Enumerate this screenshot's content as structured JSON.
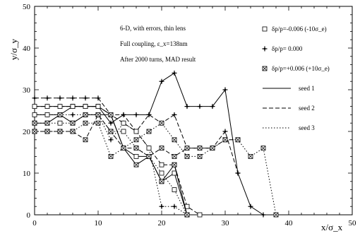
{
  "chart_data": {
    "type": "line",
    "annotations": [
      "6-D, with errors, thin lens",
      "Full coupling, ε_x=138nm",
      "After 2000 turns, MAD result"
    ],
    "xlabel": "x/σ_x",
    "ylabel": "y/σ_y",
    "xlim": [
      0,
      50
    ],
    "ylim": [
      0,
      50
    ],
    "xticks": [
      0,
      10,
      20,
      30,
      40,
      50
    ],
    "yticks": [
      0,
      10,
      20,
      30,
      40,
      50
    ],
    "grid": false,
    "legend_position": "top-right",
    "legend": {
      "markers": [
        {
          "marker": "open-square",
          "label": "δp/p=-0.006 (-10σ_e)"
        },
        {
          "marker": "plus-star",
          "label": "δp/p= 0.000"
        },
        {
          "marker": "crossed-square",
          "label": "δp/p=+0.006 (+10σ_e)"
        }
      ],
      "lines": [
        {
          "style": "solid",
          "label": "seed 1"
        },
        {
          "style": "dashed",
          "label": "seed 2"
        },
        {
          "style": "dotted",
          "label": "seed 3"
        }
      ]
    },
    "series": [
      {
        "marker": "plus-star",
        "line": "solid",
        "points": [
          [
            0,
            26
          ],
          [
            2,
            26
          ],
          [
            4,
            26
          ],
          [
            6,
            26
          ],
          [
            8,
            26
          ],
          [
            10,
            26
          ],
          [
            12,
            22
          ],
          [
            14,
            24
          ],
          [
            16,
            24
          ],
          [
            18,
            24
          ],
          [
            20,
            32
          ],
          [
            22,
            34
          ],
          [
            24,
            26
          ],
          [
            26,
            26
          ],
          [
            28,
            26
          ],
          [
            30,
            30
          ],
          [
            32,
            10
          ],
          [
            34,
            2
          ],
          [
            36,
            0
          ]
        ]
      },
      {
        "marker": "plus-star",
        "line": "dashed",
        "points": [
          [
            0,
            28
          ],
          [
            2,
            28
          ],
          [
            4,
            28
          ],
          [
            6,
            28
          ],
          [
            8,
            28
          ],
          [
            10,
            28
          ],
          [
            12,
            24
          ],
          [
            14,
            24
          ],
          [
            16,
            20
          ],
          [
            18,
            24
          ],
          [
            20,
            22
          ],
          [
            22,
            24
          ],
          [
            24,
            16
          ],
          [
            26,
            16
          ],
          [
            28,
            16
          ],
          [
            30,
            20
          ],
          [
            32,
            10
          ]
        ]
      },
      {
        "marker": "plus-star",
        "line": "dotted",
        "points": [
          [
            0,
            24
          ],
          [
            2,
            24
          ],
          [
            4,
            24
          ],
          [
            6,
            24
          ],
          [
            8,
            24
          ],
          [
            10,
            24
          ],
          [
            12,
            18
          ],
          [
            14,
            22
          ],
          [
            16,
            20
          ],
          [
            18,
            16
          ],
          [
            20,
            2
          ],
          [
            22,
            2
          ],
          [
            24,
            0
          ]
        ]
      },
      {
        "marker": "open-square",
        "line": "solid",
        "points": [
          [
            0,
            24
          ],
          [
            2,
            24
          ],
          [
            4,
            24
          ],
          [
            6,
            26
          ],
          [
            8,
            26
          ],
          [
            10,
            26
          ],
          [
            12,
            24
          ],
          [
            14,
            16
          ],
          [
            16,
            14
          ],
          [
            18,
            14
          ],
          [
            20,
            8
          ],
          [
            22,
            10
          ],
          [
            24,
            0
          ]
        ]
      },
      {
        "marker": "open-square",
        "line": "dashed",
        "points": [
          [
            0,
            26
          ],
          [
            2,
            26
          ],
          [
            4,
            26
          ],
          [
            6,
            26
          ],
          [
            8,
            26
          ],
          [
            10,
            26
          ],
          [
            12,
            24
          ],
          [
            14,
            22
          ],
          [
            16,
            20
          ],
          [
            18,
            16
          ],
          [
            20,
            12
          ],
          [
            22,
            12
          ],
          [
            24,
            2
          ],
          [
            26,
            0
          ]
        ]
      },
      {
        "marker": "open-square",
        "line": "dotted",
        "points": [
          [
            0,
            22
          ],
          [
            2,
            22
          ],
          [
            4,
            22
          ],
          [
            6,
            22
          ],
          [
            8,
            24
          ],
          [
            10,
            24
          ],
          [
            12,
            20
          ],
          [
            14,
            20
          ],
          [
            16,
            16
          ],
          [
            18,
            14
          ],
          [
            20,
            10
          ],
          [
            22,
            6
          ],
          [
            24,
            0
          ]
        ]
      },
      {
        "marker": "crossed-square",
        "line": "solid",
        "points": [
          [
            0,
            22
          ],
          [
            2,
            22
          ],
          [
            4,
            24
          ],
          [
            6,
            22
          ],
          [
            8,
            24
          ],
          [
            10,
            24
          ],
          [
            12,
            24
          ],
          [
            14,
            16
          ],
          [
            16,
            12
          ],
          [
            18,
            14
          ],
          [
            20,
            8
          ],
          [
            22,
            12
          ],
          [
            24,
            0
          ]
        ]
      },
      {
        "marker": "crossed-square",
        "line": "dashed",
        "points": [
          [
            0,
            20
          ],
          [
            2,
            20
          ],
          [
            4,
            20
          ],
          [
            6,
            20
          ],
          [
            8,
            18
          ],
          [
            10,
            24
          ],
          [
            12,
            20
          ],
          [
            14,
            16
          ],
          [
            16,
            16
          ],
          [
            18,
            14
          ],
          [
            20,
            16
          ],
          [
            22,
            14
          ],
          [
            24,
            16
          ],
          [
            26,
            16
          ],
          [
            28,
            16
          ],
          [
            30,
            18
          ],
          [
            32,
            18
          ]
        ]
      },
      {
        "marker": "crossed-square",
        "line": "dotted",
        "points": [
          [
            0,
            20
          ],
          [
            2,
            20
          ],
          [
            4,
            20
          ],
          [
            6,
            20
          ],
          [
            8,
            22
          ],
          [
            10,
            22
          ],
          [
            12,
            14
          ],
          [
            14,
            16
          ],
          [
            16,
            18
          ],
          [
            18,
            20
          ],
          [
            20,
            22
          ],
          [
            22,
            18
          ],
          [
            24,
            14
          ],
          [
            26,
            14
          ],
          [
            28,
            16
          ],
          [
            30,
            18
          ],
          [
            32,
            18
          ],
          [
            34,
            14
          ],
          [
            36,
            16
          ],
          [
            38,
            0
          ]
        ]
      }
    ]
  }
}
